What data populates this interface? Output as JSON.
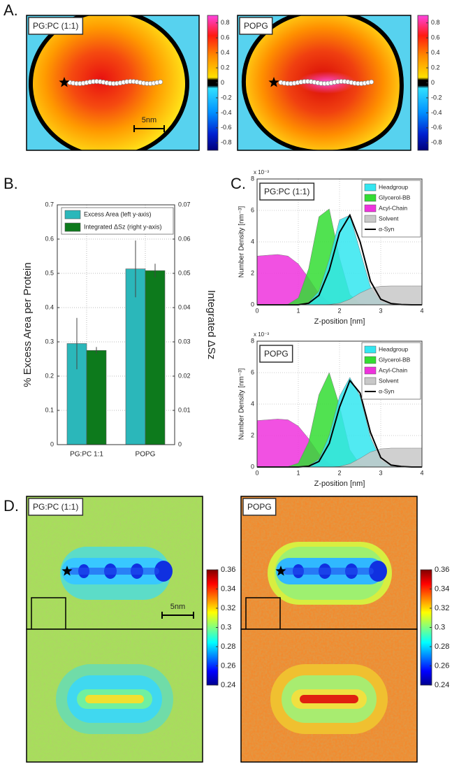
{
  "chart_data": [
    {
      "type": "heatmap",
      "panel_label": "A.",
      "title": "PG:PC (1:1)",
      "scale_label": "5nm",
      "clim": [
        -0.9,
        0.9
      ],
      "cticks": [
        0.8,
        0.6,
        0.4,
        0.2,
        0,
        -0.2,
        -0.4,
        -0.6,
        -0.8
      ]
    },
    {
      "type": "heatmap",
      "title": "POPG",
      "clim": [
        -0.9,
        0.9
      ],
      "cticks": [
        0.8,
        0.6,
        0.4,
        0.2,
        0,
        -0.2,
        -0.4,
        -0.6,
        -0.8
      ]
    },
    {
      "type": "bar",
      "panel_label": "B.",
      "categories": [
        "PG:PC      1:1",
        "POPG"
      ],
      "series": [
        {
          "name": "Excess Area (left y-axis)",
          "color": "#2bb7ba",
          "values": [
            0.295,
            0.513
          ],
          "errors": [
            0.075,
            0.083
          ]
        },
        {
          "name": "Integrated ΔSz (right y-axis)",
          "color": "#0d7a1c",
          "axis": "y2",
          "values": [
            0.0275,
            0.0508
          ],
          "errors": [
            0.001,
            0.002
          ]
        }
      ],
      "ylabel": "% Excess Area per Protein",
      "y2label": "Integrated ΔSz",
      "ylim": [
        0,
        0.7
      ],
      "yticks": [
        0,
        0.1,
        0.2,
        0.3,
        0.4,
        0.5,
        0.6,
        0.7
      ],
      "y2lim": [
        0,
        0.07
      ],
      "y2ticks": [
        0,
        0.01,
        0.02,
        0.03,
        0.04,
        0.05,
        0.06,
        0.07
      ],
      "grid": true,
      "legend": "top"
    },
    {
      "type": "area",
      "panel_label": "C.",
      "title": "PG:PC (1:1)",
      "x": [
        0,
        0.25,
        0.5,
        0.75,
        1,
        1.25,
        1.5,
        1.75,
        2,
        2.25,
        2.5,
        2.75,
        3,
        3.25,
        3.5,
        3.75,
        4
      ],
      "series": [
        {
          "name": "Headgroup",
          "color": "#33e6f0",
          "values": [
            0,
            0,
            0,
            0,
            0,
            0.15,
            0.86,
            2.9,
            5.4,
            5.7,
            3.4,
            1.15,
            0.22,
            0.02,
            0,
            0,
            0
          ]
        },
        {
          "name": "Glycerol-BB",
          "color": "#33dd33",
          "values": [
            0,
            0,
            0,
            0.04,
            0.44,
            2.3,
            5.6,
            6.1,
            3.0,
            0.66,
            0.07,
            0,
            0,
            0,
            0,
            0,
            0
          ]
        },
        {
          "name": "Acyl-Chain",
          "color": "#ee33dd",
          "values": [
            3.1,
            3.15,
            3.2,
            3.1,
            2.6,
            1.7,
            0.7,
            0.15,
            0.02,
            0,
            0,
            0,
            0,
            0,
            0,
            0,
            0
          ]
        },
        {
          "name": "Solvent",
          "color": "#c8c8c8",
          "values": [
            0,
            0,
            0,
            0,
            0,
            0,
            0,
            0.02,
            0.1,
            0.35,
            0.75,
            1.05,
            1.18,
            1.2,
            1.2,
            1.2,
            1.2
          ]
        },
        {
          "name": "α-Syn",
          "color": "#000000",
          "kind": "line",
          "values": [
            0,
            0,
            0,
            0,
            0,
            0.1,
            0.6,
            2.2,
            4.6,
            5.7,
            4.0,
            1.5,
            0.35,
            0.08,
            0.02,
            0,
            0
          ]
        }
      ],
      "xlabel": "Z-position [nm]",
      "ylabel": "Number Density [nm⁻³]",
      "y_multiplier": "x 10⁻³",
      "xlim": [
        0,
        4
      ],
      "xticks": [
        0,
        1,
        2,
        3,
        4
      ],
      "ylim": [
        0,
        8
      ],
      "yticks": [
        0,
        2,
        4,
        6,
        8
      ],
      "grid": true,
      "legend": "upper right"
    },
    {
      "type": "area",
      "title": "POPG",
      "x": [
        0,
        0.25,
        0.5,
        0.75,
        1,
        1.25,
        1.5,
        1.75,
        2,
        2.25,
        2.5,
        2.75,
        3,
        3.25,
        3.5,
        3.75,
        4
      ],
      "series": [
        {
          "name": "Headgroup",
          "color": "#33e6f0",
          "values": [
            0,
            0,
            0,
            0,
            0,
            0.08,
            0.5,
            2.0,
            4.5,
            5.7,
            4.5,
            1.9,
            0.45,
            0.06,
            0,
            0,
            0
          ]
        },
        {
          "name": "Glycerol-BB",
          "color": "#33dd33",
          "values": [
            0,
            0,
            0,
            0.03,
            0.25,
            1.6,
            4.6,
            6.0,
            3.9,
            1.1,
            0.15,
            0.01,
            0,
            0,
            0,
            0,
            0
          ]
        },
        {
          "name": "Acyl-Chain",
          "color": "#ee33dd",
          "values": [
            2.95,
            3.0,
            3.05,
            3.0,
            2.6,
            1.8,
            0.85,
            0.2,
            0.03,
            0,
            0,
            0,
            0,
            0,
            0,
            0,
            0
          ]
        },
        {
          "name": "Solvent",
          "color": "#c8c8c8",
          "values": [
            0,
            0,
            0,
            0,
            0,
            0,
            0,
            0,
            0.03,
            0.2,
            0.55,
            0.95,
            1.15,
            1.2,
            1.2,
            1.2,
            1.2
          ]
        },
        {
          "name": "α-Syn",
          "color": "#000000",
          "kind": "line",
          "values": [
            0,
            0,
            0,
            0,
            0,
            0.05,
            0.35,
            1.5,
            3.8,
            5.5,
            4.7,
            2.2,
            0.6,
            0.12,
            0.03,
            0,
            0
          ]
        }
      ],
      "xlabel": "Z-position [nm]",
      "ylabel": "Number Density [nm⁻³]",
      "y_multiplier": "x 10⁻³",
      "xlim": [
        0,
        4
      ],
      "xticks": [
        0,
        1,
        2,
        3,
        4
      ],
      "ylim": [
        0,
        8
      ],
      "yticks": [
        0,
        2,
        4,
        6,
        8
      ],
      "grid": true,
      "legend": "upper right"
    },
    {
      "type": "heatmap",
      "panel_label": "D.",
      "title": "PG:PC (1:1)",
      "scale_label": "5nm",
      "clim": [
        0.24,
        0.36
      ],
      "cticks": [
        0.36,
        0.34,
        0.32,
        0.3,
        0.28,
        0.26,
        0.24
      ]
    },
    {
      "type": "heatmap",
      "title": "POPG",
      "clim": [
        0.24,
        0.36
      ],
      "cticks": [
        0.36,
        0.34,
        0.32,
        0.3,
        0.28,
        0.26,
        0.24
      ]
    },
    {
      "type": "heatmap"
    },
    {
      "type": "heatmap"
    }
  ]
}
